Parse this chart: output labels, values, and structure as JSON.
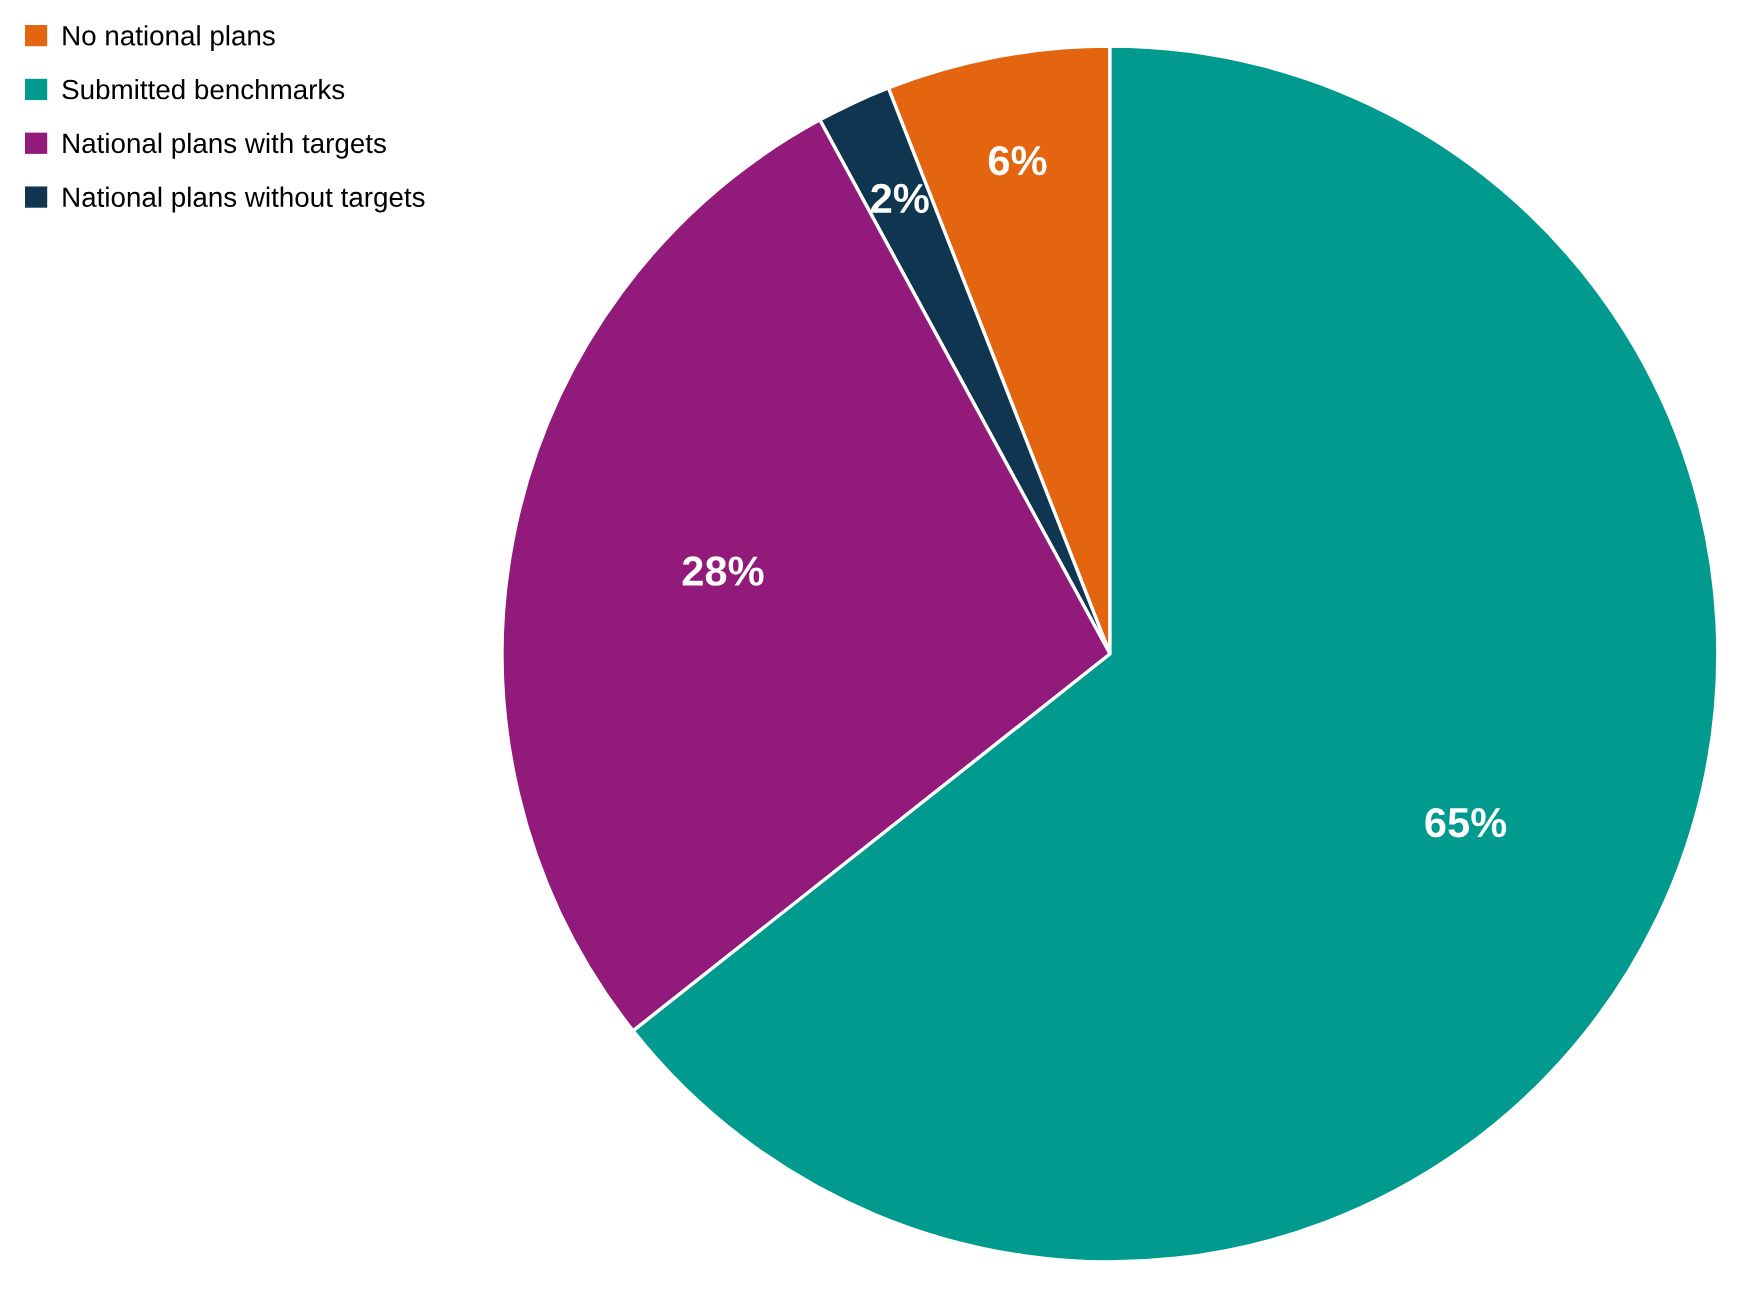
{
  "chart_data": {
    "type": "pie",
    "categories": [
      "No national plans",
      "Submitted benchmarks",
      "National plans with targets",
      "National plans without targets"
    ],
    "values": [
      6,
      65,
      28,
      2
    ],
    "colors": [
      "#e3650f",
      "#009a8e",
      "#921a7b",
      "#0f3550"
    ],
    "value_labels": [
      "6%",
      "65%",
      "28%",
      "2%"
    ],
    "legend": "top left"
  }
}
